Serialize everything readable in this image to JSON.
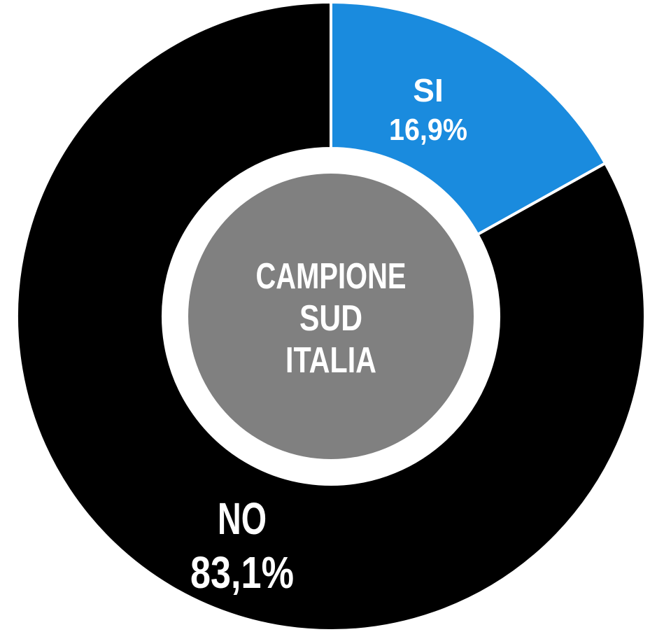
{
  "chart_data": {
    "type": "pie",
    "center_label": [
      "CAMPIONE",
      "SUD",
      "ITALIA"
    ],
    "slices": [
      {
        "label": "SI",
        "value": 16.9,
        "value_label": "16,9%",
        "color": "#1a8bde"
      },
      {
        "label": "NO",
        "value": 83.1,
        "value_label": "83,1%",
        "color": "#000000"
      }
    ],
    "center_color": "#808080",
    "background_color": "#ffffff"
  }
}
